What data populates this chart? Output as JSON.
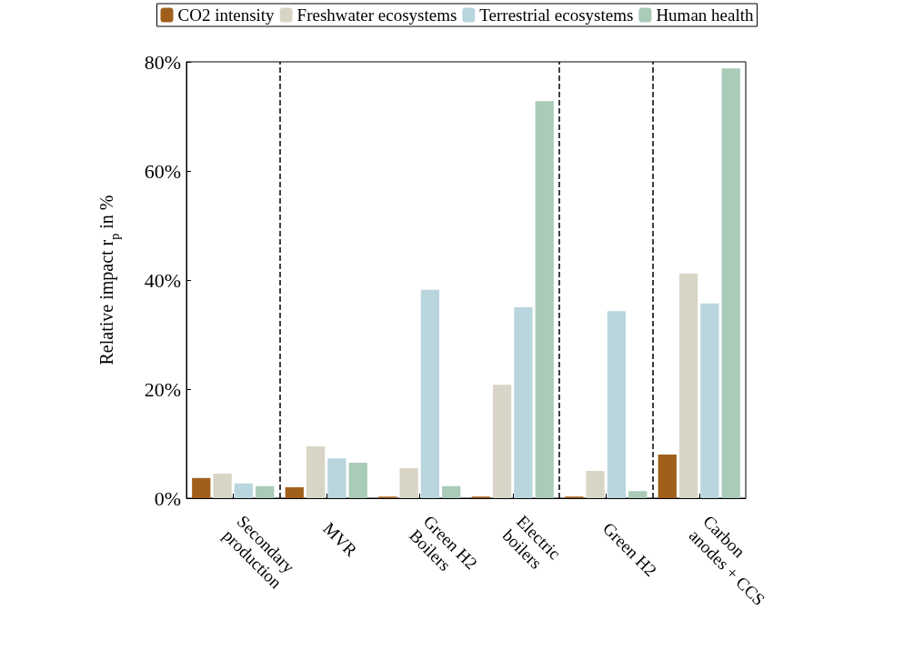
{
  "chart_data": {
    "type": "bar",
    "ylabel": "Relative impact r$_{p}$ in %",
    "categories": [
      "Secondary production",
      "MVR",
      "Green H2 Boilers",
      "Electric boilers",
      "Green H2",
      "Carbon anodes + CCS"
    ],
    "series": [
      {
        "name": "CO2 intensity",
        "color": "#a0601c",
        "values": [
          3.7,
          2.0,
          0.3,
          0.3,
          0.3,
          8.0
        ]
      },
      {
        "name": "Freshwater ecosystems",
        "color": "#d8d5c6",
        "values": [
          4.5,
          9.5,
          5.5,
          20.8,
          5.0,
          41.2
        ]
      },
      {
        "name": "Terrestrial ecosystems",
        "color": "#b9d5de",
        "values": [
          2.7,
          7.3,
          38.2,
          35.0,
          34.3,
          35.7
        ]
      },
      {
        "name": "Human health",
        "color": "#a9cbb8",
        "values": [
          2.2,
          6.5,
          2.2,
          72.8,
          1.3,
          78.8
        ]
      }
    ],
    "ylim": [
      0,
      80
    ],
    "yticks": [
      {
        "value": 0,
        "label": "0%"
      },
      {
        "value": 20,
        "label": "20%"
      },
      {
        "value": 40,
        "label": "40%"
      },
      {
        "value": 60,
        "label": "60%"
      },
      {
        "value": 80,
        "label": "80%"
      }
    ],
    "grid": false,
    "legend": "top"
  }
}
